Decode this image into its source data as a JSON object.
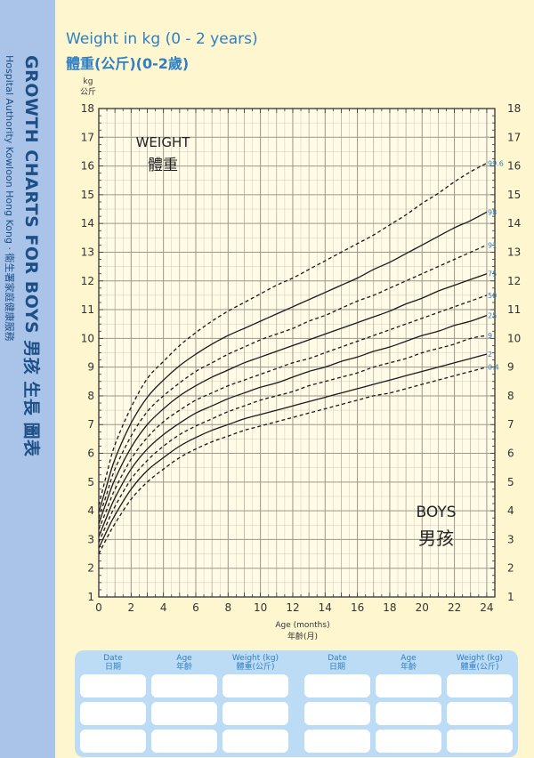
{
  "sidebar": {
    "title": "GROWTH CHARTS FOR BOYS 男孩 生長 圖表",
    "subtitle": "Hospital Authority Kowloon Hong Kong · 衞生署家庭健康服務"
  },
  "header": {
    "title_en": "Weight in kg (0 - 2 years)",
    "title_zh": "體重(公斤)(0-2歲)"
  },
  "chart_data": {
    "type": "line",
    "title": "Weight in kg (0 - 2 years)",
    "annotation_top_en": "WEIGHT",
    "annotation_top_zh": "體重",
    "annotation_bottom_en": "BOYS",
    "annotation_bottom_zh": "男孩",
    "xlabel_en": "Age (months)",
    "xlabel_zh": "年齡(月)",
    "ylabel_en": "kg",
    "ylabel_zh": "公斤",
    "xlim": [
      0,
      24.5
    ],
    "ylim": [
      1,
      18
    ],
    "xticks": [
      0,
      2,
      4,
      6,
      8,
      10,
      12,
      14,
      16,
      18,
      20,
      22,
      24
    ],
    "yticks": [
      1,
      2,
      3,
      4,
      5,
      6,
      7,
      8,
      9,
      10,
      11,
      12,
      13,
      14,
      15,
      16,
      17,
      18
    ],
    "grid": true,
    "x": [
      0,
      0.5,
      1,
      2,
      3,
      4,
      5,
      6,
      7,
      8,
      9,
      10,
      11,
      12,
      13,
      14,
      15,
      16,
      17,
      18,
      19,
      20,
      21,
      22,
      23,
      24
    ],
    "series": [
      {
        "name": "99.6",
        "dashed": true,
        "values": [
          4.2,
          5.3,
          6.3,
          7.6,
          8.6,
          9.2,
          9.75,
          10.2,
          10.6,
          10.95,
          11.25,
          11.55,
          11.85,
          12.1,
          12.4,
          12.7,
          13.0,
          13.3,
          13.6,
          13.95,
          14.3,
          14.7,
          15.05,
          15.45,
          15.8,
          16.1
        ]
      },
      {
        "name": "98",
        "dashed": false,
        "values": [
          3.95,
          4.9,
          5.8,
          7.05,
          7.95,
          8.55,
          9.05,
          9.45,
          9.8,
          10.1,
          10.35,
          10.6,
          10.85,
          11.1,
          11.35,
          11.6,
          11.85,
          12.1,
          12.4,
          12.65,
          12.95,
          13.25,
          13.55,
          13.85,
          14.1,
          14.4
        ]
      },
      {
        "name": "91",
        "dashed": true,
        "values": [
          3.75,
          4.6,
          5.45,
          6.6,
          7.45,
          8.0,
          8.45,
          8.85,
          9.15,
          9.45,
          9.7,
          9.95,
          10.15,
          10.35,
          10.6,
          10.8,
          11.05,
          11.3,
          11.5,
          11.75,
          12.0,
          12.25,
          12.5,
          12.75,
          13.0,
          13.25
        ]
      },
      {
        "name": "75",
        "dashed": false,
        "values": [
          3.55,
          4.35,
          5.1,
          6.2,
          7.0,
          7.55,
          8.0,
          8.35,
          8.65,
          8.9,
          9.15,
          9.35,
          9.55,
          9.75,
          9.95,
          10.15,
          10.35,
          10.55,
          10.75,
          10.95,
          11.2,
          11.4,
          11.65,
          11.85,
          12.05,
          12.25
        ]
      },
      {
        "name": "50",
        "dashed": true,
        "values": [
          3.35,
          4.05,
          4.75,
          5.8,
          6.55,
          7.1,
          7.5,
          7.85,
          8.1,
          8.35,
          8.55,
          8.75,
          8.95,
          9.15,
          9.3,
          9.5,
          9.7,
          9.9,
          10.1,
          10.3,
          10.5,
          10.7,
          10.9,
          11.1,
          11.3,
          11.5
        ]
      },
      {
        "name": "25",
        "dashed": false,
        "values": [
          3.1,
          3.8,
          4.45,
          5.45,
          6.15,
          6.65,
          7.05,
          7.4,
          7.65,
          7.9,
          8.1,
          8.3,
          8.45,
          8.65,
          8.85,
          9.0,
          9.2,
          9.35,
          9.55,
          9.7,
          9.9,
          10.1,
          10.25,
          10.45,
          10.6,
          10.8
        ]
      },
      {
        "name": "9",
        "dashed": true,
        "values": [
          2.9,
          3.55,
          4.15,
          5.1,
          5.75,
          6.25,
          6.65,
          6.95,
          7.2,
          7.45,
          7.65,
          7.85,
          8.0,
          8.15,
          8.35,
          8.5,
          8.65,
          8.8,
          9.0,
          9.15,
          9.3,
          9.5,
          9.65,
          9.8,
          10.0,
          10.1
        ]
      },
      {
        "name": "2",
        "dashed": false,
        "values": [
          2.7,
          3.3,
          3.85,
          4.75,
          5.4,
          5.85,
          6.25,
          6.55,
          6.8,
          7.0,
          7.2,
          7.35,
          7.5,
          7.65,
          7.8,
          7.95,
          8.1,
          8.25,
          8.4,
          8.55,
          8.7,
          8.85,
          9.0,
          9.15,
          9.3,
          9.45
        ]
      },
      {
        "name": "0.4",
        "dashed": true,
        "values": [
          2.5,
          3.05,
          3.55,
          4.4,
          5.0,
          5.45,
          5.85,
          6.15,
          6.4,
          6.6,
          6.8,
          6.95,
          7.1,
          7.25,
          7.4,
          7.55,
          7.7,
          7.85,
          8.0,
          8.1,
          8.25,
          8.4,
          8.55,
          8.7,
          8.85,
          9.0
        ]
      }
    ]
  },
  "record_table": {
    "headers": [
      {
        "en": "Date",
        "zh": "日期"
      },
      {
        "en": "Age",
        "zh": "年齡"
      },
      {
        "en": "Weight (kg)",
        "zh": "體重(公斤)"
      },
      {
        "en": "Date",
        "zh": "日期"
      },
      {
        "en": "Age",
        "zh": "年齡"
      },
      {
        "en": "Weight (kg)",
        "zh": "體重(公斤)"
      }
    ],
    "rows": 3
  },
  "colors": {
    "curve": "#1a1a1a",
    "grid": "#8e8c84",
    "label_blue": "#2f7fc4",
    "sidebar": "#a9c4e8",
    "background": "#fdf6cf"
  }
}
